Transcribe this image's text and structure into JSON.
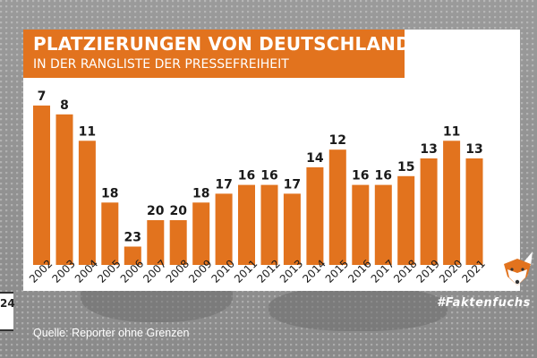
{
  "header": {
    "title": "PLATZIERUNGEN VON DEUTSCHLAND",
    "subtitle": "IN DER RANGLISTE DER PRESSEFREIHEIT"
  },
  "footer": {
    "source": "Quelle: Reporter ohne Grenzen",
    "hashtag": "#Faktenfuchs",
    "side_badge": "24"
  },
  "colors": {
    "bar": "#e2731e",
    "accent": "#e2731e",
    "card": "#ffffff"
  },
  "icons": [
    "fox-logo-icon"
  ],
  "chart_data": {
    "type": "bar",
    "title": "PLATZIERUNGEN VON DEUTSCHLAND",
    "subtitle": "IN DER RANGLISTE DER PRESSEFREIHEIT",
    "categories": [
      "2002",
      "2003",
      "2004",
      "2005",
      "2006",
      "2007",
      "2008",
      "2009",
      "2010",
      "2011",
      "2012",
      "2013",
      "2014",
      "2015",
      "2016",
      "2017",
      "2018",
      "2019",
      "2020",
      "2021"
    ],
    "values": [
      7,
      8,
      11,
      18,
      23,
      20,
      20,
      18,
      17,
      16,
      16,
      17,
      14,
      12,
      16,
      16,
      15,
      13,
      11,
      13
    ],
    "xlabel": "",
    "ylabel": "",
    "note": "Bar height inversely proportional to rank (lower rank = taller bar)",
    "grid": false,
    "legend": "none"
  }
}
